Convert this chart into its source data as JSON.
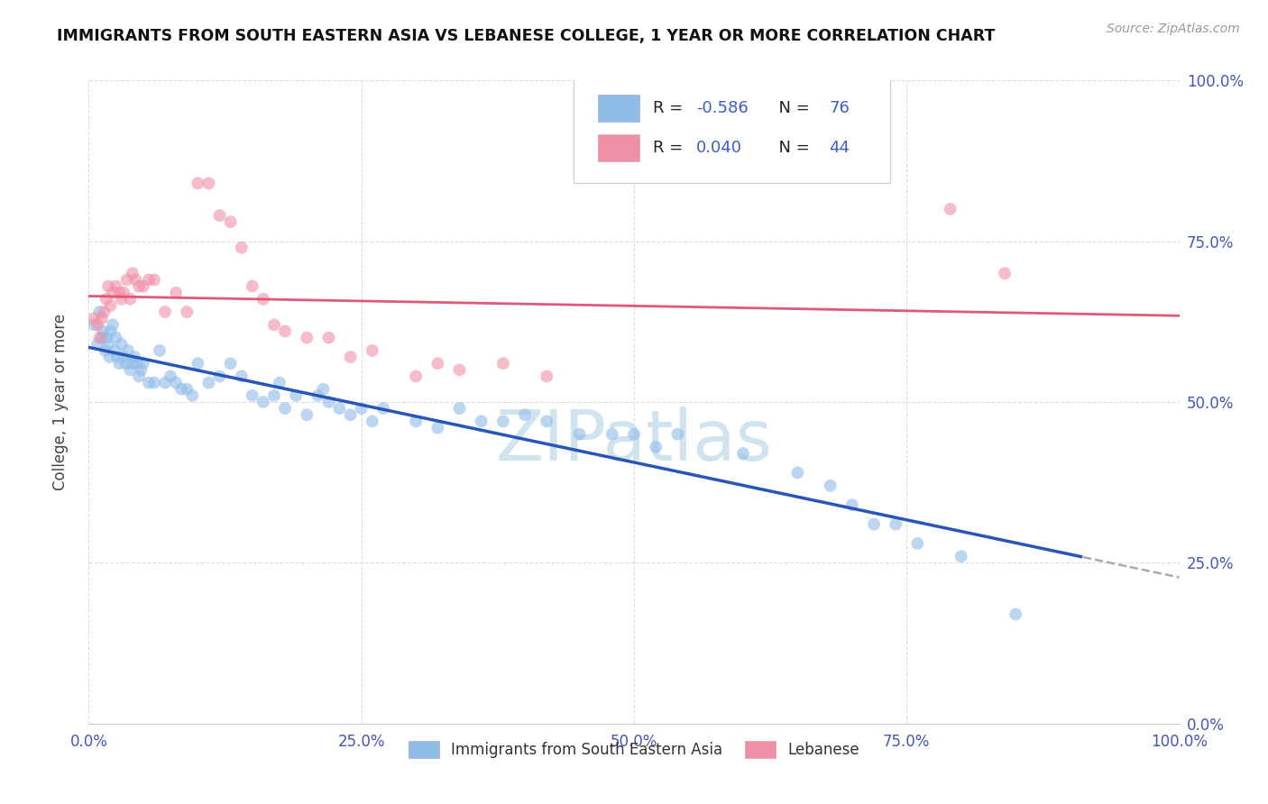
{
  "title": "IMMIGRANTS FROM SOUTH EASTERN ASIA VS LEBANESE COLLEGE, 1 YEAR OR MORE CORRELATION CHART",
  "source": "Source: ZipAtlas.com",
  "ylabel": "College, 1 year or more",
  "legend_entries": [
    {
      "label": "Immigrants from South Eastern Asia",
      "color": "#aec6e8",
      "line_color": "#3a6fc4",
      "R": -0.586,
      "N": 76
    },
    {
      "label": "Lebanese",
      "color": "#f4b8c8",
      "line_color": "#e0607a",
      "R": 0.04,
      "N": 44
    }
  ],
  "ytick_values": [
    0.0,
    0.25,
    0.5,
    0.75,
    1.0
  ],
  "xtick_values": [
    0.0,
    0.25,
    0.5,
    0.75,
    1.0
  ],
  "background_color": "#ffffff",
  "grid_color": "#dddddd",
  "watermark_color": "#d0e4f0",
  "blue_scatter_color": "#90bce8",
  "pink_scatter_color": "#f090a8",
  "blue_line_color": "#2855b8",
  "pink_line_color": "#e05878",
  "scatter_alpha": 0.6,
  "scatter_size": 100,
  "blue_points_x": [
    0.005,
    0.008,
    0.01,
    0.012,
    0.013,
    0.015,
    0.016,
    0.018,
    0.019,
    0.02,
    0.022,
    0.024,
    0.025,
    0.026,
    0.028,
    0.03,
    0.032,
    0.034,
    0.036,
    0.038,
    0.04,
    0.042,
    0.044,
    0.046,
    0.048,
    0.05,
    0.055,
    0.06,
    0.065,
    0.07,
    0.075,
    0.08,
    0.085,
    0.09,
    0.095,
    0.1,
    0.11,
    0.12,
    0.13,
    0.14,
    0.15,
    0.16,
    0.17,
    0.175,
    0.18,
    0.19,
    0.2,
    0.21,
    0.215,
    0.22,
    0.23,
    0.24,
    0.25,
    0.26,
    0.27,
    0.3,
    0.32,
    0.34,
    0.36,
    0.38,
    0.4,
    0.42,
    0.45,
    0.48,
    0.5,
    0.52,
    0.54,
    0.6,
    0.65,
    0.68,
    0.7,
    0.72,
    0.74,
    0.76,
    0.8,
    0.85
  ],
  "blue_points_y": [
    0.62,
    0.59,
    0.64,
    0.6,
    0.61,
    0.58,
    0.6,
    0.59,
    0.57,
    0.61,
    0.62,
    0.58,
    0.6,
    0.57,
    0.56,
    0.59,
    0.57,
    0.56,
    0.58,
    0.55,
    0.56,
    0.57,
    0.56,
    0.54,
    0.55,
    0.56,
    0.53,
    0.53,
    0.58,
    0.53,
    0.54,
    0.53,
    0.52,
    0.52,
    0.51,
    0.56,
    0.53,
    0.54,
    0.56,
    0.54,
    0.51,
    0.5,
    0.51,
    0.53,
    0.49,
    0.51,
    0.48,
    0.51,
    0.52,
    0.5,
    0.49,
    0.48,
    0.49,
    0.47,
    0.49,
    0.47,
    0.46,
    0.49,
    0.47,
    0.47,
    0.48,
    0.47,
    0.45,
    0.45,
    0.45,
    0.43,
    0.45,
    0.42,
    0.39,
    0.37,
    0.34,
    0.31,
    0.31,
    0.28,
    0.26,
    0.17
  ],
  "pink_points_x": [
    0.005,
    0.008,
    0.01,
    0.012,
    0.014,
    0.016,
    0.018,
    0.02,
    0.022,
    0.025,
    0.028,
    0.03,
    0.032,
    0.035,
    0.038,
    0.04,
    0.043,
    0.046,
    0.05,
    0.055,
    0.06,
    0.07,
    0.08,
    0.09,
    0.1,
    0.11,
    0.12,
    0.13,
    0.14,
    0.15,
    0.16,
    0.17,
    0.18,
    0.2,
    0.22,
    0.24,
    0.26,
    0.3,
    0.32,
    0.34,
    0.38,
    0.42,
    0.79,
    0.84
  ],
  "pink_points_y": [
    0.63,
    0.62,
    0.6,
    0.63,
    0.64,
    0.66,
    0.68,
    0.65,
    0.67,
    0.68,
    0.67,
    0.66,
    0.67,
    0.69,
    0.66,
    0.7,
    0.69,
    0.68,
    0.68,
    0.69,
    0.69,
    0.64,
    0.67,
    0.64,
    0.84,
    0.84,
    0.79,
    0.78,
    0.74,
    0.68,
    0.66,
    0.62,
    0.61,
    0.6,
    0.6,
    0.57,
    0.58,
    0.54,
    0.56,
    0.55,
    0.56,
    0.54,
    0.8,
    0.7
  ]
}
